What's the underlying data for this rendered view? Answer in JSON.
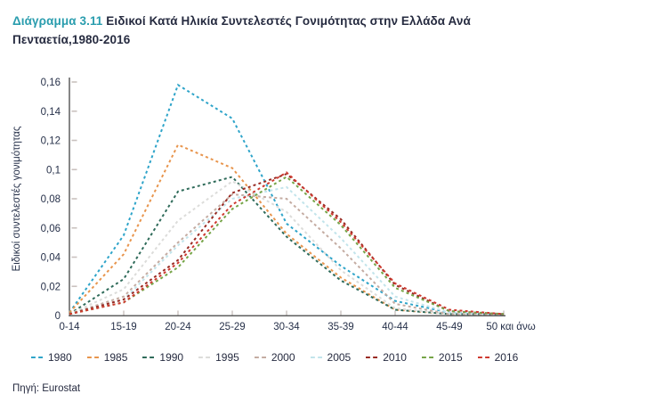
{
  "title": {
    "prefix": "Διάγραμμα 3.11",
    "text": " Ειδικοί Κατά Ηλικία Συντελεστές Γονιμότητας στην Ελλάδα Ανά Πενταετία,1980-2016"
  },
  "source": "Πηγή: Eurostat",
  "colors": {
    "title_prefix": "#2A9DAE",
    "title_text": "#262B40",
    "axis": "#5F5F5F",
    "tick": "#C9C1BE",
    "labels": "#263049"
  },
  "chart_data": {
    "type": "line",
    "title": "Ειδικοί Κατά Ηλικία Συντελεστές Γονιμότητας στην Ελλάδα Ανά Πενταετία, 1980-2016",
    "xlabel": "",
    "ylabel": "Ειδικοί συντελεστές γονιμότητας",
    "ylim": [
      0,
      0.16
    ],
    "grid": false,
    "line_style": "dashed",
    "legend_position": "bottom",
    "categories": [
      "0-14",
      "15-19",
      "20-24",
      "25-29",
      "30-34",
      "35-39",
      "40-44",
      "45-49",
      "50 και άνω"
    ],
    "y_ticks": [
      {
        "v": 0.16,
        "label": "0,16"
      },
      {
        "v": 0.14,
        "label": "0,14"
      },
      {
        "v": 0.12,
        "label": "0,12"
      },
      {
        "v": 0.1,
        "label": "0,1"
      },
      {
        "v": 0.08,
        "label": "0,08"
      },
      {
        "v": 0.06,
        "label": "0,06"
      },
      {
        "v": 0.04,
        "label": "0,04"
      },
      {
        "v": 0.02,
        "label": "0,02"
      },
      {
        "v": 0.0,
        "label": "0"
      }
    ],
    "series": [
      {
        "name": "1980",
        "color": "#2EA4C9",
        "values": [
          0.002,
          0.055,
          0.158,
          0.135,
          0.063,
          0.034,
          0.01,
          0.002,
          0.001
        ]
      },
      {
        "name": "1985",
        "color": "#E8954D",
        "values": [
          0.002,
          0.042,
          0.117,
          0.101,
          0.056,
          0.026,
          0.004,
          0.001,
          0.001
        ]
      },
      {
        "name": "1990",
        "color": "#2F6B5A",
        "values": [
          0.001,
          0.025,
          0.085,
          0.095,
          0.054,
          0.024,
          0.004,
          0.001,
          0.001
        ]
      },
      {
        "name": "1995",
        "color": "#DCDCDA",
        "values": [
          0.001,
          0.018,
          0.065,
          0.092,
          0.071,
          0.031,
          0.005,
          0.001,
          0.001
        ]
      },
      {
        "name": "2000",
        "color": "#C4ACA2",
        "values": [
          0.001,
          0.013,
          0.05,
          0.083,
          0.08,
          0.046,
          0.008,
          0.001,
          0.001
        ]
      },
      {
        "name": "2005",
        "color": "#C2E4EB",
        "values": [
          0.001,
          0.011,
          0.048,
          0.08,
          0.088,
          0.053,
          0.013,
          0.002,
          0.001
        ]
      },
      {
        "name": "2010",
        "color": "#992B23",
        "values": [
          0.001,
          0.011,
          0.038,
          0.084,
          0.097,
          0.066,
          0.021,
          0.003,
          0.001
        ]
      },
      {
        "name": "2015",
        "color": "#75A447",
        "values": [
          0.001,
          0.009,
          0.033,
          0.073,
          0.095,
          0.062,
          0.019,
          0.003,
          0.001
        ]
      },
      {
        "name": "2016",
        "color": "#CE3A30",
        "values": [
          0.001,
          0.009,
          0.036,
          0.076,
          0.098,
          0.064,
          0.022,
          0.004,
          0.001
        ]
      }
    ]
  }
}
